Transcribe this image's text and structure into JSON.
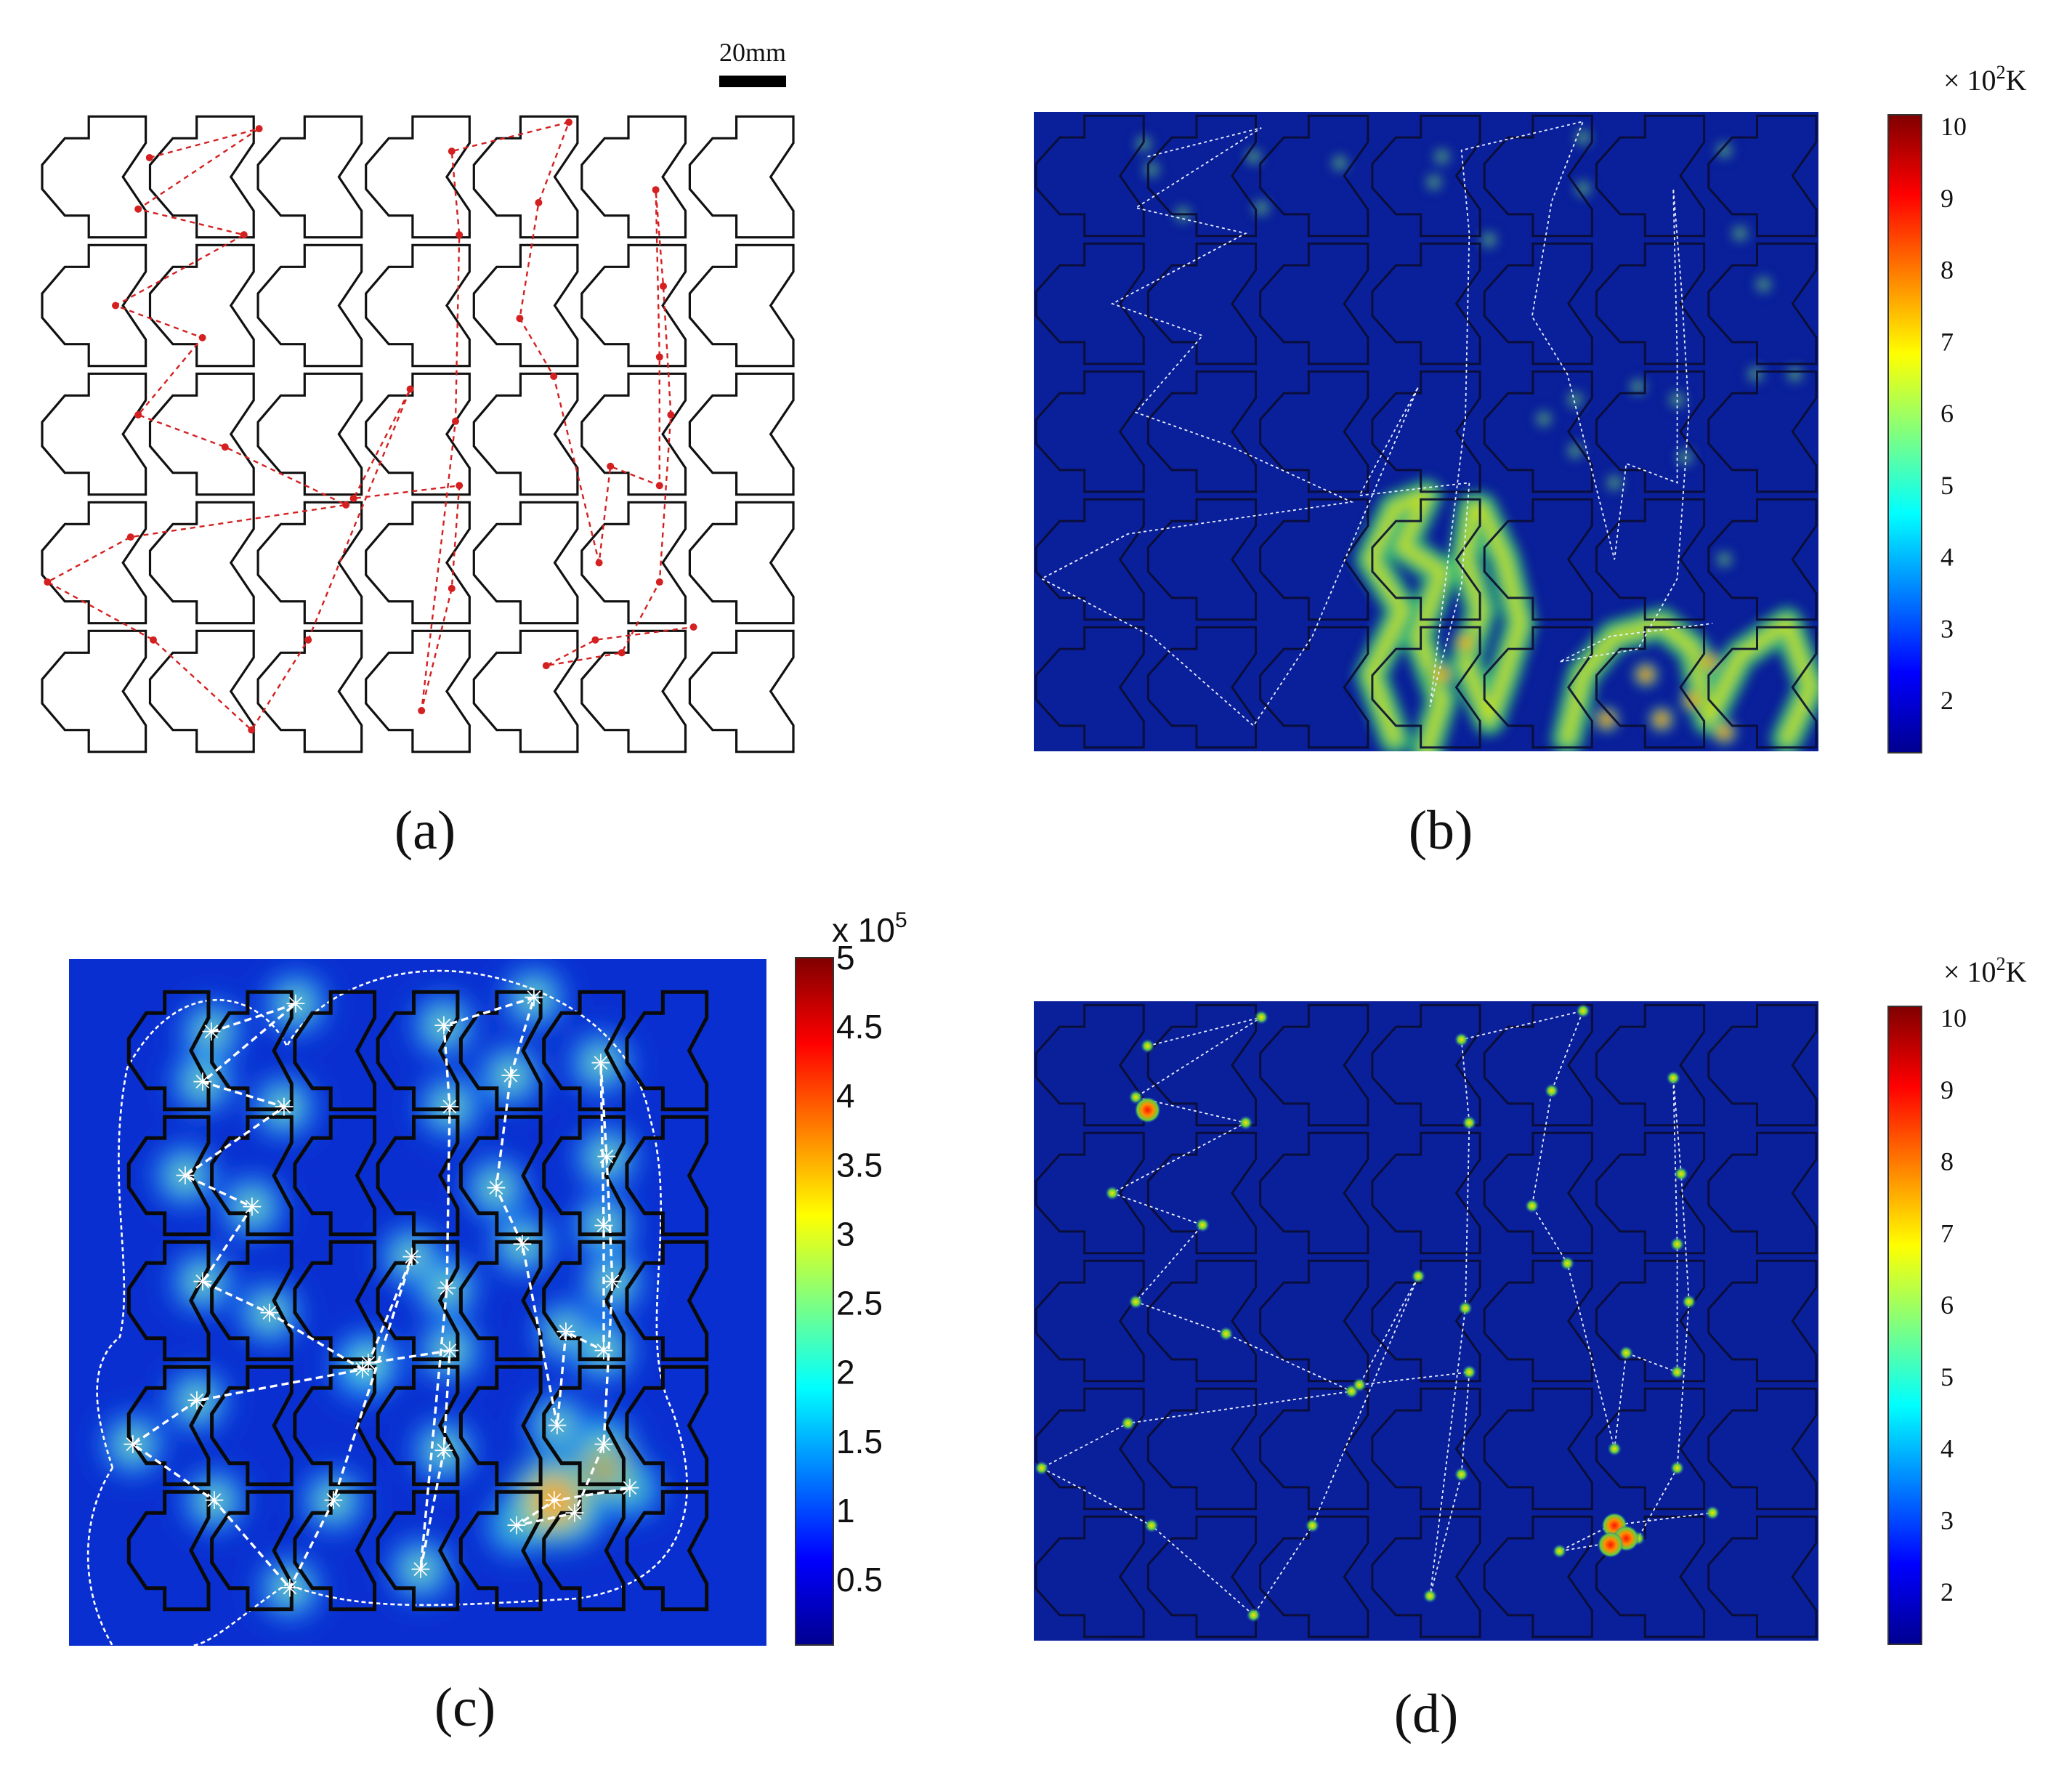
{
  "figure": {
    "panels": [
      {
        "id": "a",
        "label": "(a)"
      },
      {
        "id": "b",
        "label": "(b)"
      },
      {
        "id": "c",
        "label": "(c)"
      },
      {
        "id": "d",
        "label": "(d)"
      }
    ],
    "scale_bar": {
      "text": "20mm"
    },
    "colorbar_temperature": {
      "unit_prefix": "× 10",
      "unit_exp": "2",
      "unit_suffix": "K",
      "ticks": [
        "10",
        "9",
        "8",
        "7",
        "6",
        "5",
        "4",
        "3",
        "2"
      ]
    },
    "colorbar_density": {
      "unit_prefix": "x 10",
      "unit_exp": "5",
      "ticks": [
        "5",
        "4.5",
        "4",
        "3.5",
        "3",
        "2.5",
        "2",
        "1.5",
        "1",
        "0.5"
      ]
    },
    "colors": {
      "outline": "#111111",
      "path_a": "#d42020",
      "path_bcd": "#ffffff",
      "field_bg": "#0a1f9a"
    }
  }
}
